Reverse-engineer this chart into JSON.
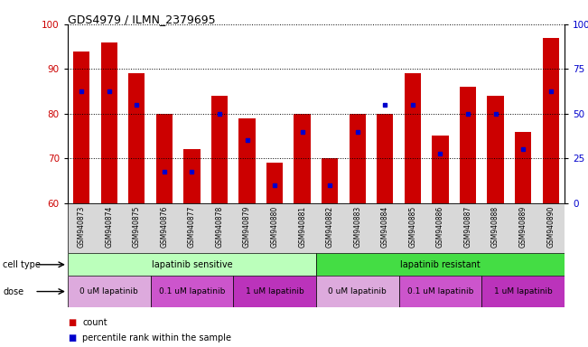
{
  "title": "GDS4979 / ILMN_2379695",
  "samples": [
    "GSM940873",
    "GSM940874",
    "GSM940875",
    "GSM940876",
    "GSM940877",
    "GSM940878",
    "GSM940879",
    "GSM940880",
    "GSM940881",
    "GSM940882",
    "GSM940883",
    "GSM940884",
    "GSM940885",
    "GSM940886",
    "GSM940887",
    "GSM940888",
    "GSM940889",
    "GSM940890"
  ],
  "bar_heights": [
    94,
    96,
    89,
    80,
    72,
    84,
    79,
    69,
    80,
    70,
    80,
    80,
    89,
    75,
    86,
    84,
    76,
    97
  ],
  "blue_markers": [
    85,
    85,
    82,
    67,
    67,
    80,
    74,
    64,
    76,
    64,
    76,
    82,
    82,
    71,
    80,
    80,
    72,
    85
  ],
  "ylim": [
    60,
    100
  ],
  "yticks_left": [
    60,
    70,
    80,
    90,
    100
  ],
  "yticks_right": [
    0,
    25,
    50,
    75,
    100
  ],
  "ylabel_left_color": "#cc0000",
  "ylabel_right_color": "#0000cc",
  "bar_color": "#cc0000",
  "marker_color": "#0000cc",
  "cell_type_groups": [
    {
      "label": "lapatinib sensitive",
      "start": 0,
      "end": 9,
      "color": "#bbffbb"
    },
    {
      "label": "lapatinib resistant",
      "start": 9,
      "end": 18,
      "color": "#44dd44"
    }
  ],
  "dose_groups": [
    {
      "label": "0 uM lapatinib",
      "start": 0,
      "end": 3,
      "color": "#ddaadd"
    },
    {
      "label": "0.1 uM lapatinib",
      "start": 3,
      "end": 6,
      "color": "#cc55cc"
    },
    {
      "label": "1 uM lapatinib",
      "start": 6,
      "end": 9,
      "color": "#bb33bb"
    },
    {
      "label": "0 uM lapatinib",
      "start": 9,
      "end": 12,
      "color": "#ddaadd"
    },
    {
      "label": "0.1 uM lapatinib",
      "start": 12,
      "end": 15,
      "color": "#cc55cc"
    },
    {
      "label": "1 uM lapatinib",
      "start": 15,
      "end": 18,
      "color": "#bb33bb"
    }
  ],
  "legend_items": [
    {
      "label": "count",
      "color": "#cc0000"
    },
    {
      "label": "percentile rank within the sample",
      "color": "#0000cc"
    }
  ],
  "background_color": "#ffffff",
  "bar_width": 0.6
}
